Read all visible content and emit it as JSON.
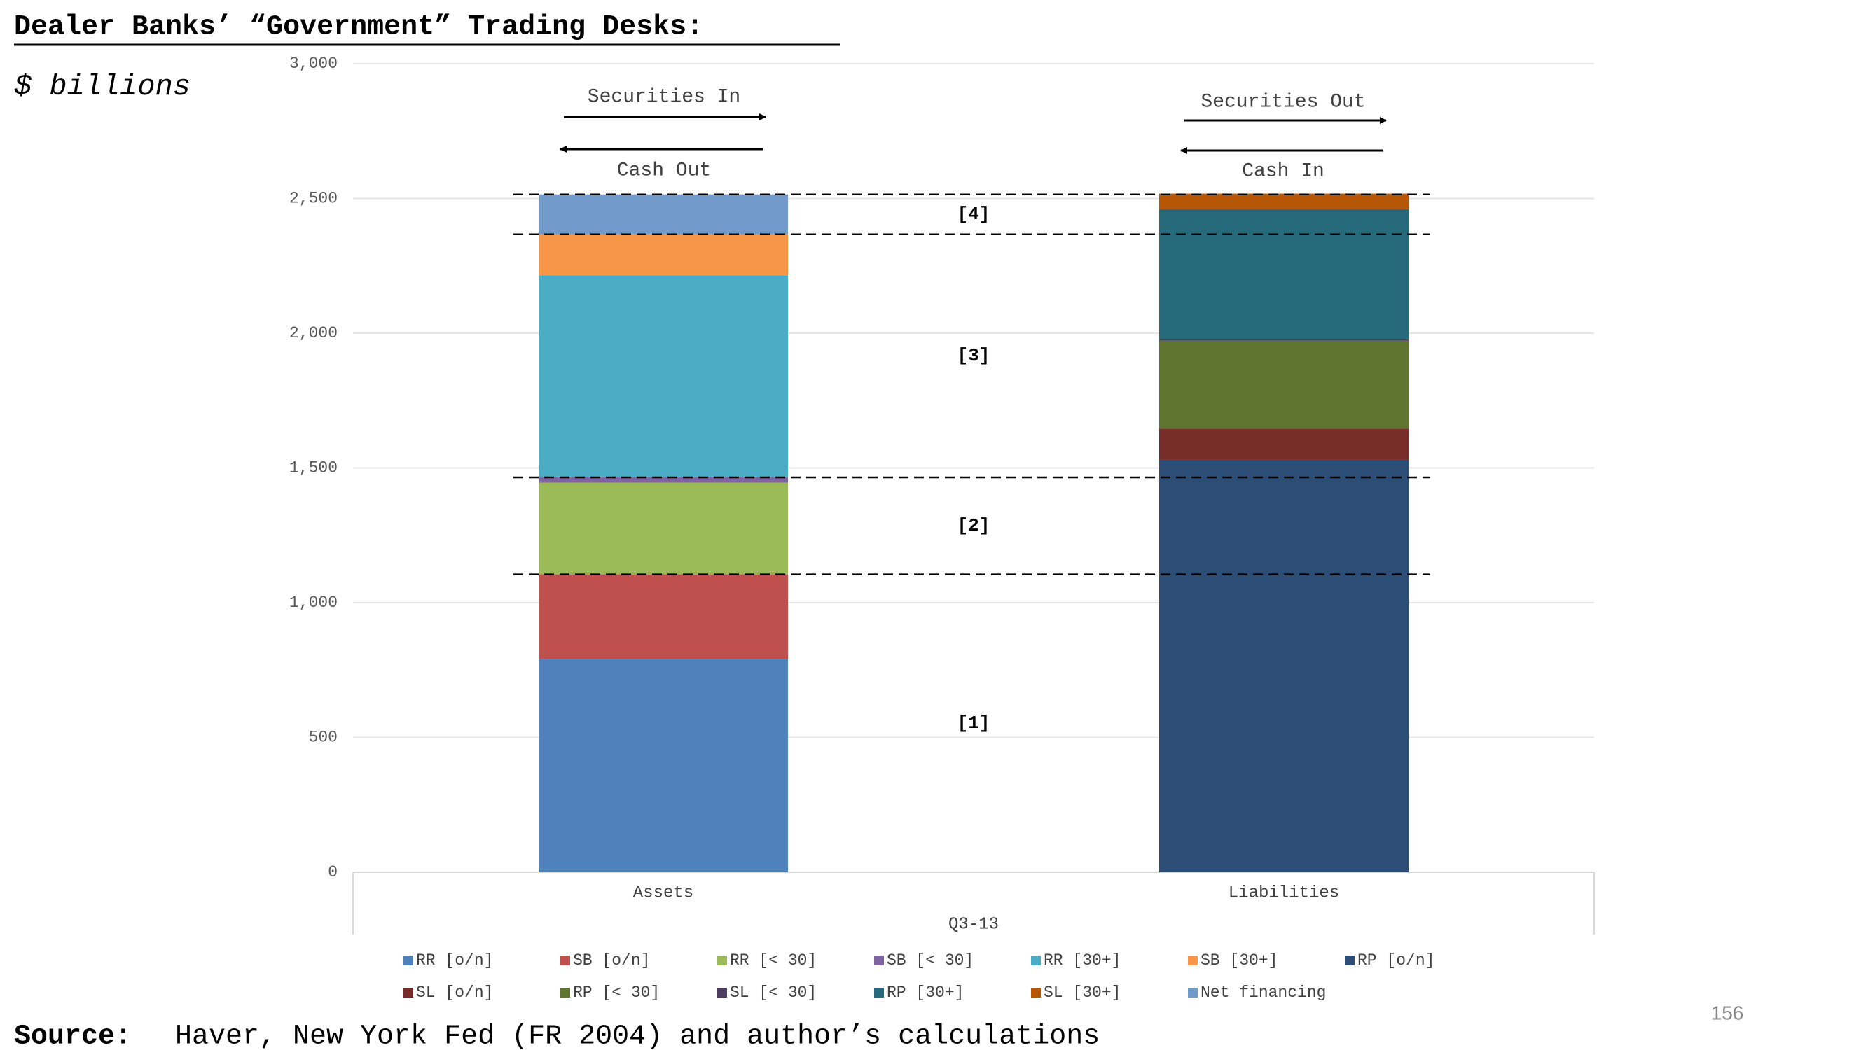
{
  "slide": {
    "page_number": "156",
    "source_label": "Source:",
    "source_text": "Haver, New York Fed (FR 2004) and author’s calculations"
  },
  "chart_data": {
    "type": "stacked-bar",
    "title": "Dealer Banks’ “Government” Trading Desks:",
    "subtitle": "$ billions",
    "x_label": "Q3-13",
    "categories": [
      "Assets",
      "Liabilities"
    ],
    "series": [
      {
        "name": "RR [o/n]",
        "color": "#4f81bd",
        "values": [
          790,
          null
        ]
      },
      {
        "name": "SB [o/n]",
        "color": "#c0504d",
        "values": [
          315,
          null
        ]
      },
      {
        "name": "RR [< 30]",
        "color": "#9bbb59",
        "values": [
          340,
          null
        ]
      },
      {
        "name": "SB [< 30]",
        "color": "#8064a2",
        "values": [
          20,
          null
        ]
      },
      {
        "name": "RR [30+]",
        "color": "#4bacc6",
        "values": [
          750,
          null
        ]
      },
      {
        "name": "SB [30+]",
        "color": "#f79646",
        "values": [
          152,
          null
        ]
      },
      {
        "name": "RP [o/n]",
        "color": "#2c4d75",
        "values": [
          null,
          1530
        ]
      },
      {
        "name": "SL [o/n]",
        "color": "#772c2a",
        "values": [
          null,
          116
        ]
      },
      {
        "name": "RP [< 30]",
        "color": "#5f7530",
        "values": [
          null,
          326
        ]
      },
      {
        "name": "SL [< 30]",
        "color": "#4d3b62",
        "values": [
          null,
          5
        ]
      },
      {
        "name": "RP [30+]",
        "color": "#276a7c",
        "values": [
          null,
          483
        ]
      },
      {
        "name": "SL [30+]",
        "color": "#b65708",
        "values": [
          null,
          58
        ]
      },
      {
        "name": "Net financing",
        "color": "#729aca",
        "values": [
          148,
          null
        ]
      }
    ],
    "ylim": [
      0,
      3000
    ],
    "yticks": [
      0,
      500,
      {
        "value": 1000,
        "label": "1,000"
      },
      {
        "value": 1500,
        "label": "1,500"
      },
      {
        "value": 2000,
        "label": "2,000"
      },
      {
        "value": 2500,
        "label": "2,500"
      },
      {
        "value": 3000,
        "label": "3,000"
      }
    ],
    "grid": true,
    "legend": "bottom",
    "annotations": [
      "Securities In",
      "Cash Out",
      "Securities Out",
      "Cash In",
      "[4]",
      "[3]",
      "[2]",
      "[1]"
    ]
  }
}
